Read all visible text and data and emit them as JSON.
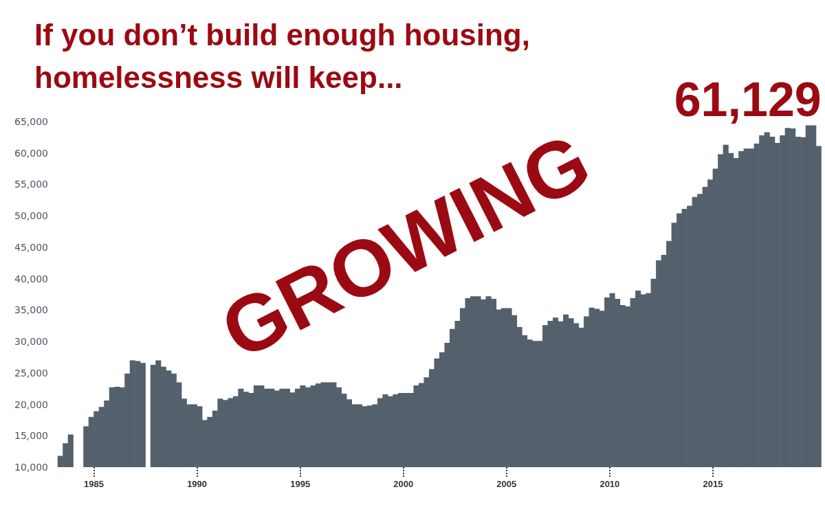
{
  "chart_data": {
    "type": "bar",
    "title": "If you don’t build enough housing,\nhomelessness will keep...",
    "annotations": [
      "GROWING",
      {
        "text": "61,129",
        "x": 2020.125,
        "y": 61129
      }
    ],
    "x": [
      1983.375,
      1983.625,
      1983.875,
      1984.125,
      1984.375,
      1984.625,
      1984.875,
      1985.125,
      1985.375,
      1985.625,
      1985.875,
      1986.125,
      1986.375,
      1986.625,
      1986.875,
      1987.125,
      1987.375,
      1987.625,
      1987.875,
      1988.125,
      1988.375,
      1988.625,
      1988.875,
      1989.125,
      1989.375,
      1989.625,
      1989.875,
      1990.125,
      1990.375,
      1990.625,
      1990.875,
      1991.125,
      1991.375,
      1991.625,
      1991.875,
      1992.125,
      1992.375,
      1992.625,
      1992.875,
      1993.125,
      1993.375,
      1993.625,
      1993.875,
      1994.125,
      1994.375,
      1994.625,
      1994.875,
      1995.125,
      1995.375,
      1995.625,
      1995.875,
      1996.125,
      1996.375,
      1996.625,
      1996.875,
      1997.125,
      1997.375,
      1997.625,
      1997.875,
      1998.125,
      1998.375,
      1998.625,
      1998.875,
      1999.125,
      1999.375,
      1999.625,
      1999.875,
      2000.125,
      2000.375,
      2000.625,
      2000.875,
      2001.125,
      2001.375,
      2001.625,
      2001.875,
      2002.125,
      2002.375,
      2002.625,
      2002.875,
      2003.125,
      2003.375,
      2003.625,
      2003.875,
      2004.125,
      2004.375,
      2004.625,
      2004.875,
      2005.125,
      2005.375,
      2005.625,
      2005.875,
      2006.125,
      2006.375,
      2006.625,
      2006.875,
      2007.125,
      2007.375,
      2007.625,
      2007.875,
      2008.125,
      2008.375,
      2008.625,
      2008.875,
      2009.125,
      2009.375,
      2009.625,
      2009.875,
      2010.125,
      2010.375,
      2010.625,
      2010.875,
      2011.125,
      2011.375,
      2011.625,
      2011.875,
      2012.125,
      2012.375,
      2012.625,
      2012.875,
      2013.125,
      2013.375,
      2013.625,
      2013.875,
      2014.125,
      2014.375,
      2014.625,
      2014.875,
      2015.125,
      2015.375,
      2015.625,
      2015.875,
      2016.125,
      2016.375,
      2016.625,
      2016.875,
      2017.125,
      2017.375,
      2017.625,
      2017.875,
      2018.125,
      2018.375,
      2018.625,
      2018.875,
      2019.125,
      2019.375,
      2019.625,
      2019.875,
      2020.125
    ],
    "values": [
      11800,
      13800,
      15200,
      null,
      null,
      16500,
      18000,
      18900,
      19600,
      20600,
      22700,
      22800,
      22700,
      24900,
      27000,
      26900,
      26600,
      null,
      26300,
      27000,
      26000,
      25400,
      24900,
      23500,
      20900,
      20000,
      20000,
      19700,
      17500,
      18000,
      19000,
      20900,
      20700,
      21000,
      21300,
      22500,
      22000,
      21800,
      23000,
      23000,
      22500,
      22500,
      22200,
      22500,
      22500,
      21900,
      22500,
      23000,
      22700,
      23000,
      23300,
      23500,
      23500,
      23500,
      22700,
      21700,
      20800,
      20000,
      20000,
      19700,
      19800,
      20000,
      21000,
      21600,
      21300,
      21600,
      21800,
      21800,
      21800,
      23000,
      23400,
      24300,
      25600,
      27300,
      28300,
      29800,
      32000,
      33300,
      35300,
      36900,
      37200,
      37200,
      36700,
      37200,
      36800,
      35100,
      35300,
      35300,
      34200,
      32300,
      31000,
      30300,
      30100,
      30100,
      32600,
      33300,
      33800,
      33200,
      34300,
      33700,
      32900,
      32200,
      34000,
      35400,
      35200,
      34900,
      37000,
      37700,
      36800,
      35800,
      35600,
      36900,
      38100,
      37500,
      37700,
      40000,
      42900,
      43800,
      46000,
      48900,
      50400,
      51100,
      51600,
      53000,
      53500,
      54600,
      55800,
      57500,
      59800,
      61300,
      60000,
      59200,
      60300,
      60700,
      60700,
      61500,
      62800,
      63300,
      62600,
      61600,
      62800,
      64000,
      63900,
      62600,
      62500,
      64400,
      64400,
      61129
    ],
    "color": "#54616d",
    "xlim": [
      1983.05,
      2020.3
    ],
    "xticks": [
      1985,
      1990,
      1995,
      2000,
      2005,
      2010,
      2015
    ],
    "ylim": [
      10000,
      65000
    ],
    "yticks": [
      {
        "value": 10000,
        "label": "10,000"
      },
      {
        "value": 15000,
        "label": "15,000"
      },
      {
        "value": 20000,
        "label": "20,000"
      },
      {
        "value": 25000,
        "label": "25,000"
      },
      {
        "value": 30000,
        "label": "30,000"
      },
      {
        "value": 35000,
        "label": "35,000"
      },
      {
        "value": 40000,
        "label": "40,000"
      },
      {
        "value": 45000,
        "label": "45,000"
      },
      {
        "value": 50000,
        "label": "50,000"
      },
      {
        "value": 55000,
        "label": "55,000"
      },
      {
        "value": 60000,
        "label": "60,000"
      },
      {
        "value": 65000,
        "label": "65,000"
      }
    ]
  }
}
